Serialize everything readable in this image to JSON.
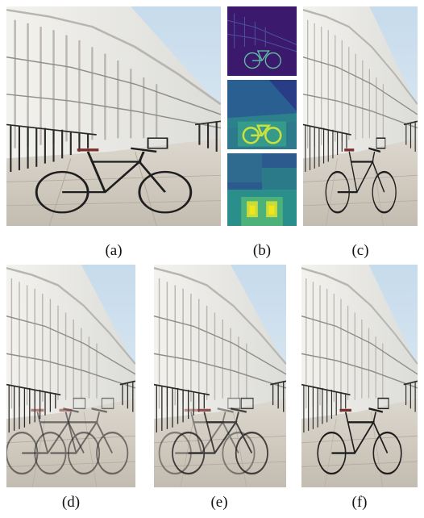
{
  "figure": {
    "captions": {
      "a": "(a)",
      "b": "(b)",
      "c": "(c)",
      "d": "(d)",
      "e": "(e)",
      "f": "(f)"
    },
    "colors": {
      "sky": "#cfe0ee",
      "facade": "#ecebe6",
      "pavement": "#cfc8bd",
      "railing": "#2a2a2a",
      "heatmap_low": "#3b1a6e",
      "heatmap_mid": "#2a8f8a",
      "heatmap_high": "#e6e21b"
    }
  }
}
